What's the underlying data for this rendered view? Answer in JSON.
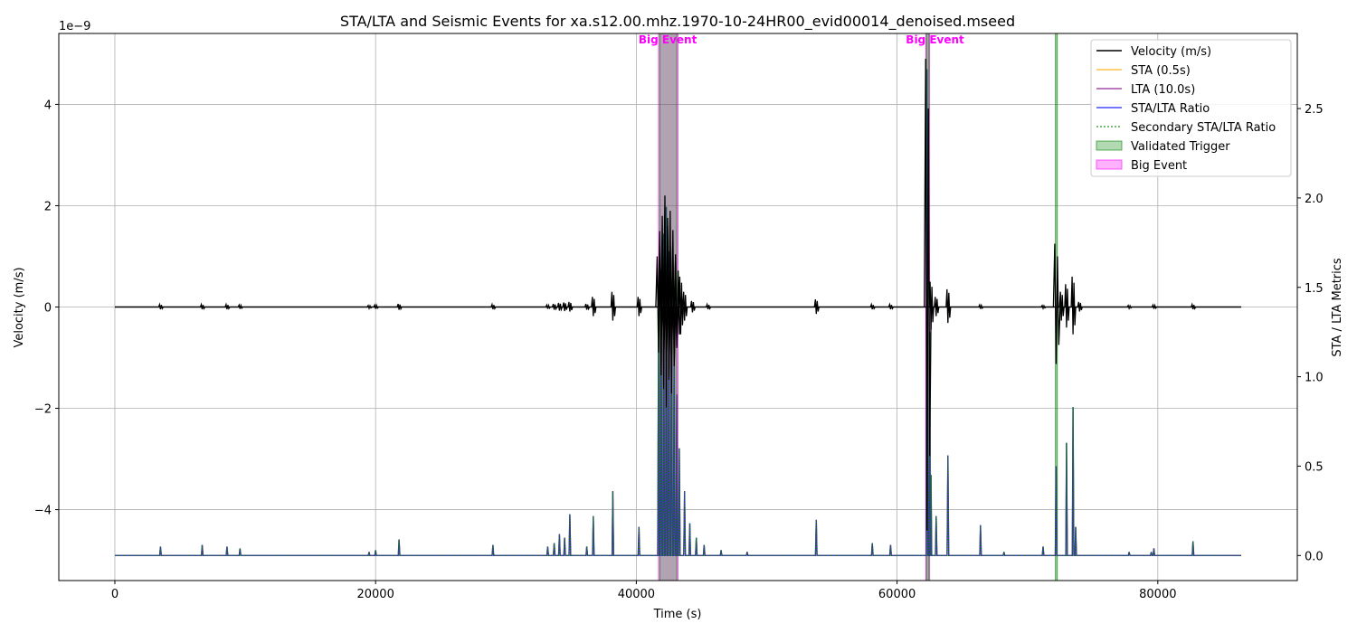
{
  "chart_data": {
    "type": "line",
    "title": "STA/LTA and Seismic Events for xa.s12.00.mhz.1970-10-24HR00_evid00014_denoised.mseed",
    "xlabel": "Time (s)",
    "ylabel": "Velocity (m/s)",
    "ylabel_right": "STA / LTA Metrics",
    "left_axis_multiplier": "1e−9",
    "xlim": [
      -4300,
      90700
    ],
    "ylim_left": [
      -5.4,
      5.4
    ],
    "ylim_right": [
      -0.14,
      2.92
    ],
    "x_ticks": [
      0,
      20000,
      40000,
      60000,
      80000
    ],
    "x_tick_labels": [
      "0",
      "20000",
      "40000",
      "60000",
      "80000"
    ],
    "y_ticks_left": [
      -4,
      -2,
      0,
      2,
      4
    ],
    "y_tick_labels_left": [
      "−4",
      "−2",
      "0",
      "2",
      "4"
    ],
    "y_ticks_right": [
      0.0,
      0.5,
      1.0,
      1.5,
      2.0,
      2.5
    ],
    "y_tick_labels_right": [
      "0.0",
      "0.5",
      "1.0",
      "1.5",
      "2.0",
      "2.5"
    ],
    "grid": true,
    "legend_position": "top-right",
    "legend": [
      {
        "label": "Velocity (m/s)",
        "kind": "line",
        "color": "#000000",
        "dash": "solid"
      },
      {
        "label": "STA (0.5s)",
        "kind": "line",
        "color": "#ffa500",
        "dash": "solid"
      },
      {
        "label": "LTA (10.0s)",
        "kind": "line",
        "color": "#800080",
        "dash": "solid"
      },
      {
        "label": "STA/LTA Ratio",
        "kind": "line",
        "color": "#0000ff",
        "dash": "solid"
      },
      {
        "label": "Secondary STA/LTA Ratio",
        "kind": "line",
        "color": "#008000",
        "dash": "dotted"
      },
      {
        "label": "Validated Trigger",
        "kind": "patch",
        "color": "#008000"
      },
      {
        "label": "Big Event",
        "kind": "patch",
        "color": "#ff00ff"
      }
    ],
    "big_events": [
      {
        "label": "Big Event",
        "x_start": 41700,
        "x_end": 43200
      },
      {
        "label": "Big Event",
        "x_start": 62200,
        "x_end": 62500
      }
    ],
    "validated_triggers": [
      {
        "x_start": 41800,
        "x_end": 43100
      },
      {
        "x_start": 62250,
        "x_end": 62450
      },
      {
        "x_start": 72150,
        "x_end": 72250
      }
    ],
    "velocity_bursts": [
      {
        "x": 3500,
        "amp": 0.05
      },
      {
        "x": 6700,
        "amp": 0.05
      },
      {
        "x": 8600,
        "amp": 0.05
      },
      {
        "x": 9600,
        "amp": 0.04
      },
      {
        "x": 19500,
        "amp": 0.03
      },
      {
        "x": 20000,
        "amp": 0.04
      },
      {
        "x": 21800,
        "amp": 0.06
      },
      {
        "x": 29000,
        "amp": 0.05
      },
      {
        "x": 33200,
        "amp": 0.04
      },
      {
        "x": 33700,
        "amp": 0.06
      },
      {
        "x": 34100,
        "amp": 0.08
      },
      {
        "x": 34500,
        "amp": 0.09
      },
      {
        "x": 34900,
        "amp": 0.1
      },
      {
        "x": 36200,
        "amp": 0.06
      },
      {
        "x": 36700,
        "amp": 0.2
      },
      {
        "x": 38200,
        "amp": 0.3
      },
      {
        "x": 40200,
        "amp": 0.2
      },
      {
        "x": 41700,
        "amp": 1.0
      },
      {
        "x": 41900,
        "amp": 1.5
      },
      {
        "x": 42100,
        "amp": 1.8
      },
      {
        "x": 42300,
        "amp": 2.2
      },
      {
        "x": 42500,
        "amp": 1.6
      },
      {
        "x": 42700,
        "amp": 1.9
      },
      {
        "x": 42900,
        "amp": 1.3
      },
      {
        "x": 43100,
        "amp": 0.9
      },
      {
        "x": 43400,
        "amp": 0.6
      },
      {
        "x": 43700,
        "amp": 0.3
      },
      {
        "x": 44300,
        "amp": 0.12
      },
      {
        "x": 45500,
        "amp": 0.05
      },
      {
        "x": 53800,
        "amp": 0.15
      },
      {
        "x": 58100,
        "amp": 0.05
      },
      {
        "x": 59500,
        "amp": 0.05
      },
      {
        "x": 62300,
        "amp": 4.9
      },
      {
        "x": 62600,
        "amp": 0.5
      },
      {
        "x": 63000,
        "amp": 0.2
      },
      {
        "x": 63900,
        "amp": 0.35
      },
      {
        "x": 66400,
        "amp": 0.04
      },
      {
        "x": 71200,
        "amp": 0.03
      },
      {
        "x": 72200,
        "amp": 1.25
      },
      {
        "x": 72600,
        "amp": 0.3
      },
      {
        "x": 73000,
        "amp": 0.45
      },
      {
        "x": 73500,
        "amp": 0.6
      },
      {
        "x": 74000,
        "amp": 0.1
      },
      {
        "x": 77800,
        "amp": 0.03
      },
      {
        "x": 79700,
        "amp": 0.04
      },
      {
        "x": 82700,
        "amp": 0.05
      }
    ],
    "sta_lta_spikes": [
      {
        "x": 3500,
        "value": 0.05
      },
      {
        "x": 6700,
        "value": 0.06
      },
      {
        "x": 8600,
        "value": 0.05
      },
      {
        "x": 9600,
        "value": 0.04
      },
      {
        "x": 19500,
        "value": 0.02
      },
      {
        "x": 20000,
        "value": 0.03
      },
      {
        "x": 21800,
        "value": 0.09
      },
      {
        "x": 29000,
        "value": 0.06
      },
      {
        "x": 33200,
        "value": 0.05
      },
      {
        "x": 33700,
        "value": 0.07
      },
      {
        "x": 34100,
        "value": 0.12
      },
      {
        "x": 34500,
        "value": 0.1
      },
      {
        "x": 34900,
        "value": 0.23
      },
      {
        "x": 36200,
        "value": 0.05
      },
      {
        "x": 36700,
        "value": 0.22
      },
      {
        "x": 38200,
        "value": 0.36
      },
      {
        "x": 40200,
        "value": 0.16
      },
      {
        "x": 41700,
        "value": 1.2
      },
      {
        "x": 41900,
        "value": 1.6
      },
      {
        "x": 42100,
        "value": 1.8
      },
      {
        "x": 42300,
        "value": 1.95
      },
      {
        "x": 42500,
        "value": 1.7
      },
      {
        "x": 42700,
        "value": 1.5
      },
      {
        "x": 42900,
        "value": 1.1
      },
      {
        "x": 43100,
        "value": 0.9
      },
      {
        "x": 43300,
        "value": 0.6
      },
      {
        "x": 43700,
        "value": 0.36
      },
      {
        "x": 44100,
        "value": 0.18
      },
      {
        "x": 44600,
        "value": 0.1
      },
      {
        "x": 45200,
        "value": 0.06
      },
      {
        "x": 46500,
        "value": 0.03
      },
      {
        "x": 48500,
        "value": 0.02
      },
      {
        "x": 53800,
        "value": 0.2
      },
      {
        "x": 58100,
        "value": 0.07
      },
      {
        "x": 59500,
        "value": 0.06
      },
      {
        "x": 62300,
        "value": 2.72
      },
      {
        "x": 62500,
        "value": 1.25
      },
      {
        "x": 62600,
        "value": 0.45
      },
      {
        "x": 63000,
        "value": 0.22
      },
      {
        "x": 63900,
        "value": 0.56
      },
      {
        "x": 66400,
        "value": 0.17
      },
      {
        "x": 68200,
        "value": 0.02
      },
      {
        "x": 71200,
        "value": 0.05
      },
      {
        "x": 72200,
        "value": 0.5
      },
      {
        "x": 73000,
        "value": 0.63
      },
      {
        "x": 73500,
        "value": 0.83
      },
      {
        "x": 73700,
        "value": 0.16
      },
      {
        "x": 77800,
        "value": 0.02
      },
      {
        "x": 79500,
        "value": 0.02
      },
      {
        "x": 79700,
        "value": 0.04
      },
      {
        "x": 82700,
        "value": 0.08
      }
    ],
    "series_x_range": [
      0,
      86400
    ]
  }
}
